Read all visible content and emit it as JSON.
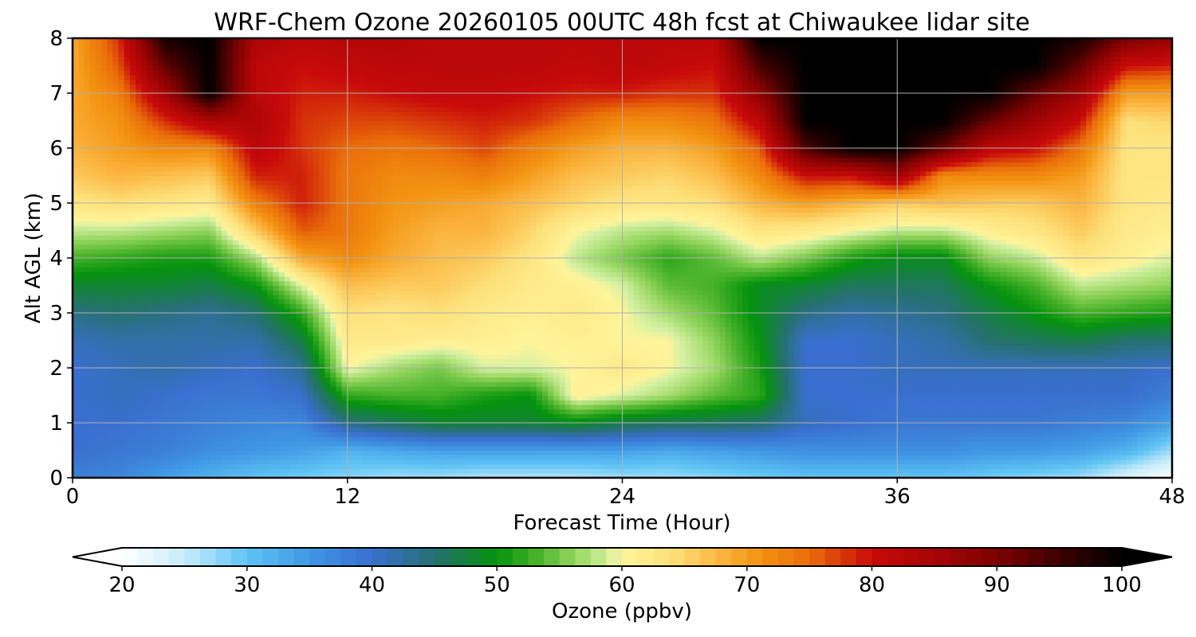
{
  "chart_data": {
    "type": "heatmap",
    "title": "WRF-Chem Ozone  20260105 00UTC 48h fcst at Chiwaukee lidar site",
    "xlabel": "Forecast Time (Hour)",
    "ylabel": "Alt AGL (km)",
    "xlim": [
      0,
      48
    ],
    "ylim": [
      0,
      8
    ],
    "x_ticks": [
      "0",
      "12",
      "24",
      "36",
      "48"
    ],
    "y_ticks": [
      "0",
      "1",
      "2",
      "3",
      "4",
      "5",
      "6",
      "7",
      "8"
    ],
    "grid": true,
    "colorbar": {
      "label": "Ozone  (ppbv)",
      "range": [
        20,
        100
      ],
      "ticks": [
        "20",
        "30",
        "40",
        "50",
        "60",
        "70",
        "80",
        "90",
        "100"
      ],
      "extend": "both",
      "colors": [
        [
          20,
          "#ffffff"
        ],
        [
          25,
          "#c8ecfb"
        ],
        [
          30,
          "#5fc4f4"
        ],
        [
          35,
          "#3f97e4"
        ],
        [
          40,
          "#3a6fcf"
        ],
        [
          45,
          "#25706f"
        ],
        [
          50,
          "#05920d"
        ],
        [
          53,
          "#44b028"
        ],
        [
          56,
          "#8fd35a"
        ],
        [
          59,
          "#d7f1a4"
        ],
        [
          60,
          "#fff49a"
        ],
        [
          64,
          "#fde07a"
        ],
        [
          68,
          "#fbb43f"
        ],
        [
          71,
          "#f39412"
        ],
        [
          75,
          "#ea6d0a"
        ],
        [
          80,
          "#c80a0a"
        ],
        [
          85,
          "#a70505"
        ],
        [
          90,
          "#7d0202"
        ],
        [
          95,
          "#3d0000"
        ],
        [
          100,
          "#000000"
        ]
      ]
    },
    "x": [
      0,
      2,
      4,
      6,
      8,
      10,
      12,
      14,
      16,
      18,
      20,
      22,
      24,
      26,
      28,
      30,
      32,
      34,
      36,
      38,
      40,
      42,
      44,
      46,
      48
    ],
    "y": [
      0,
      0.5,
      1,
      1.5,
      2,
      2.5,
      3,
      3.5,
      4,
      4.5,
      5,
      5.5,
      6,
      6.5,
      7,
      7.5,
      8
    ],
    "z_columns": [
      [
        38,
        40,
        40,
        40,
        40,
        41,
        44,
        48,
        53,
        58,
        63,
        66,
        68,
        69,
        69,
        69,
        69
      ],
      [
        37,
        39,
        40,
        41,
        41,
        42,
        45,
        48,
        52,
        58,
        64,
        68,
        70,
        71,
        73,
        76,
        78
      ],
      [
        34,
        38,
        39,
        40,
        42,
        42,
        44,
        48,
        51,
        57,
        63,
        67,
        72,
        78,
        85,
        92,
        98
      ],
      [
        32,
        36,
        38,
        39,
        41,
        42,
        43,
        47,
        51,
        56,
        62,
        66,
        72,
        84,
        100,
        100,
        100
      ],
      [
        30,
        35,
        37,
        39,
        40,
        42,
        45,
        50,
        57,
        66,
        73,
        79,
        82,
        84,
        82,
        82,
        84
      ],
      [
        29,
        34,
        37,
        40,
        43,
        47,
        52,
        59,
        69,
        76,
        79,
        79,
        78,
        78,
        79,
        80,
        82
      ],
      [
        28,
        32,
        44,
        52,
        60,
        62,
        64,
        67,
        72,
        74,
        74,
        74,
        75,
        77,
        79,
        81,
        83
      ],
      [
        27,
        33,
        46,
        53,
        57,
        62,
        63,
        66,
        69,
        70,
        71,
        72,
        74,
        77,
        80,
        82,
        83
      ],
      [
        27,
        34,
        48,
        53,
        55,
        61,
        64,
        66,
        67,
        68,
        70,
        72,
        75,
        78,
        81,
        82,
        82
      ],
      [
        26,
        34,
        48,
        51,
        59,
        61,
        62,
        64,
        66,
        68,
        69,
        73,
        77,
        79,
        81,
        82,
        82
      ],
      [
        26,
        34,
        48,
        50,
        59,
        60,
        61,
        62,
        63,
        65,
        67,
        70,
        73,
        78,
        80,
        82,
        82
      ],
      [
        26,
        34,
        49,
        61,
        60,
        61,
        62,
        61,
        58,
        60,
        65,
        67,
        70,
        75,
        79,
        81,
        82
      ],
      [
        27,
        34,
        47,
        59,
        62,
        60,
        60,
        59,
        55,
        58,
        63,
        66,
        68,
        72,
        79,
        82,
        82
      ],
      [
        27,
        33,
        46,
        57,
        60,
        60,
        57,
        54,
        52,
        57,
        63,
        65,
        68,
        72,
        78,
        81,
        82
      ],
      [
        28,
        34,
        46,
        54,
        57,
        56,
        54,
        53,
        54,
        59,
        64,
        67,
        70,
        74,
        78,
        80,
        82
      ],
      [
        29,
        35,
        45,
        52,
        51,
        50,
        49,
        49,
        58,
        63,
        68,
        72,
        76,
        82,
        88,
        94,
        100
      ],
      [
        30,
        36,
        41,
        40,
        40,
        40,
        44,
        48,
        55,
        62,
        70,
        80,
        94,
        100,
        100,
        100,
        100
      ],
      [
        30,
        36,
        40,
        40,
        40,
        40,
        42,
        46,
        51,
        60,
        68,
        80,
        100,
        100,
        100,
        100,
        100
      ],
      [
        30,
        36,
        39,
        40,
        41,
        41,
        43,
        46,
        49,
        58,
        66,
        86,
        100,
        100,
        100,
        100,
        100
      ],
      [
        30,
        36,
        39,
        40,
        41,
        42,
        44,
        46,
        49,
        58,
        67,
        72,
        92,
        100,
        100,
        100,
        100
      ],
      [
        29,
        35,
        39,
        40,
        41,
        45,
        47,
        50,
        56,
        61,
        66,
        72,
        82,
        92,
        100,
        100,
        100
      ],
      [
        28,
        35,
        39,
        40,
        41,
        46,
        50,
        53,
        58,
        63,
        66,
        72,
        80,
        86,
        92,
        100,
        100
      ],
      [
        27,
        34,
        38,
        40,
        41,
        47,
        53,
        58,
        63,
        66,
        68,
        70,
        74,
        80,
        86,
        92,
        98
      ],
      [
        23,
        32,
        37,
        40,
        41,
        45,
        52,
        57,
        61,
        62,
        63,
        63,
        63,
        64,
        70,
        80,
        90
      ],
      [
        20,
        27,
        34,
        38,
        40,
        45,
        51,
        56,
        59,
        61,
        62,
        63,
        63,
        65,
        70,
        79,
        87
      ]
    ]
  }
}
